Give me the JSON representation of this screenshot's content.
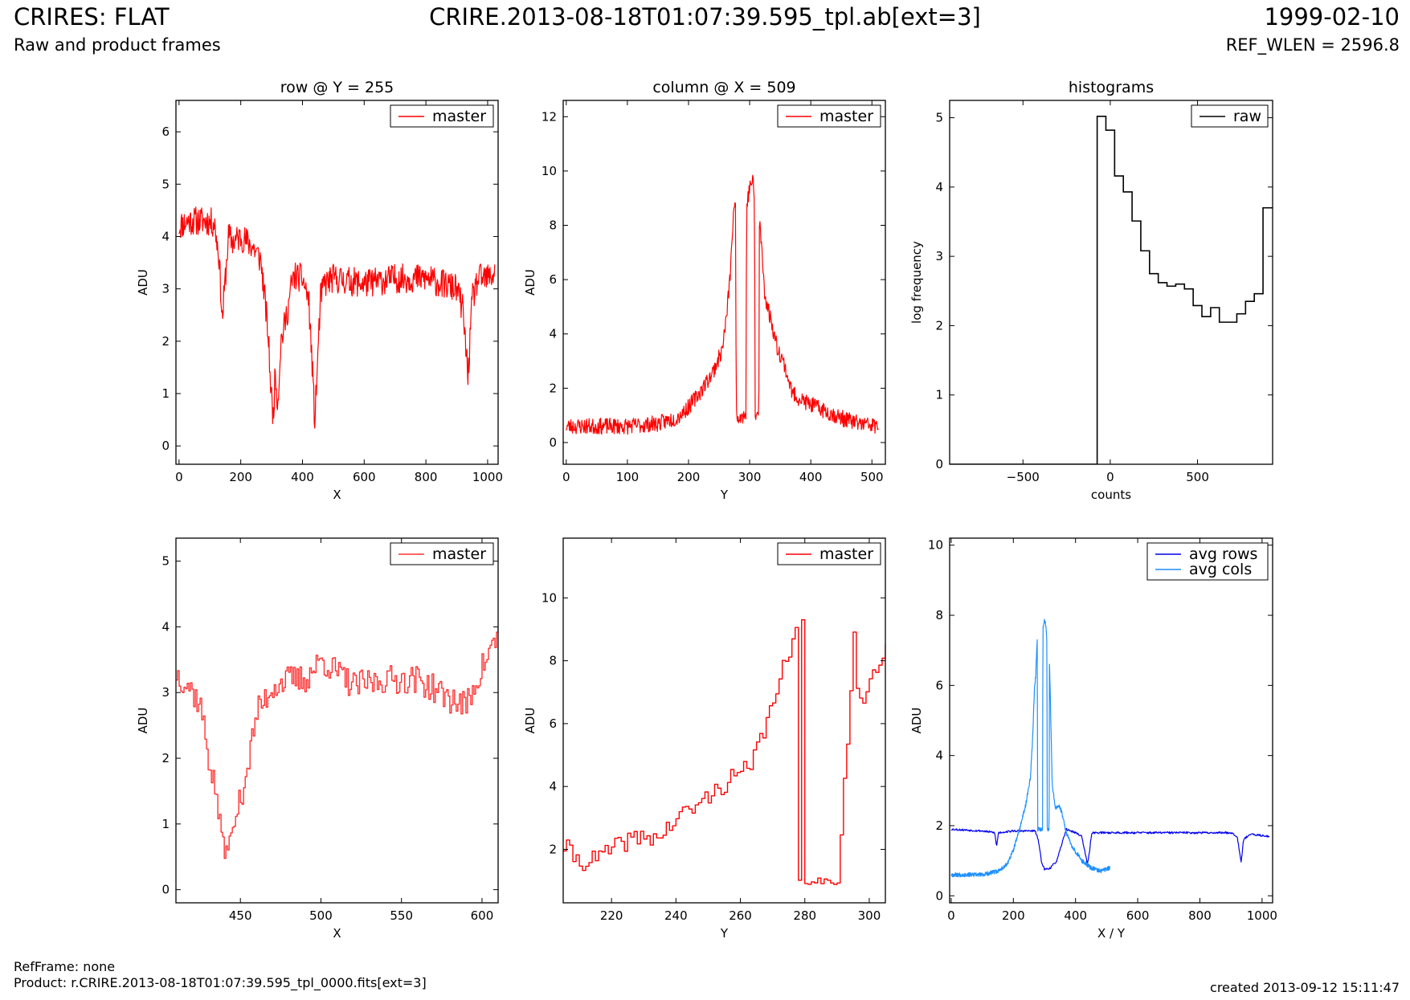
{
  "header": {
    "title_left": "CRIRES: FLAT",
    "subtitle_left": "Raw and product frames",
    "title_center": "CRIRE.2013-08-18T01:07:39.595_tpl.ab[ext=3]",
    "title_right": "1999-02-10",
    "subtitle_right": "REF_WLEN = 2596.8"
  },
  "footer": {
    "ref_frame": "RefFrame: none",
    "product": "Product: r.CRIRE.2013-08-18T01:07:39.595_tpl_0000.fits[ext=3]",
    "created": "created 2013-09-12 15:11:47"
  },
  "colors": {
    "master": "#ff0000",
    "raw": "#000000",
    "avg_rows": "#0000ee",
    "avg_cols": "#1e90ff"
  },
  "chart_data": [
    {
      "type": "line",
      "title": "row @ Y = 255",
      "xlabel": "X",
      "ylabel": "ADU",
      "xlim": [
        -10,
        1034
      ],
      "ylim": [
        -0.35,
        6.6
      ],
      "xticks": [
        0,
        200,
        400,
        600,
        800,
        1000
      ],
      "yticks": [
        0,
        1,
        2,
        3,
        4,
        5,
        6
      ],
      "legend": "top-right",
      "series": [
        {
          "name": "master",
          "color": "#ff0000",
          "style": "noisy",
          "noise": 0.28,
          "noise_seed": 11,
          "x": [
            0,
            30,
            60,
            90,
            115,
            130,
            140,
            150,
            160,
            175,
            200,
            240,
            265,
            280,
            290,
            298,
            305,
            312,
            320,
            330,
            340,
            352,
            365,
            375,
            400,
            420,
            432,
            440,
            448,
            458,
            470,
            500,
            600,
            700,
            800,
            900,
            920,
            930,
            937,
            950,
            970,
            1000,
            1023
          ],
          "y": [
            4.2,
            4.3,
            4.3,
            4.3,
            4.25,
            3.6,
            2.4,
            3.2,
            4.0,
            3.9,
            4.0,
            3.8,
            3.55,
            2.7,
            2.0,
            1.05,
            0.55,
            1.4,
            0.8,
            2.0,
            2.25,
            2.6,
            3.1,
            3.25,
            3.2,
            2.8,
            1.5,
            0.45,
            1.5,
            2.8,
            3.1,
            3.2,
            3.1,
            3.2,
            3.2,
            3.0,
            2.6,
            1.8,
            1.35,
            2.8,
            3.2,
            3.2,
            3.3
          ]
        }
      ]
    },
    {
      "type": "line",
      "title": "column @ X = 509",
      "xlabel": "Y",
      "ylabel": "ADU",
      "xlim": [
        -5,
        522
      ],
      "ylim": [
        -0.8,
        12.6
      ],
      "xticks": [
        0,
        100,
        200,
        300,
        400,
        500
      ],
      "yticks": [
        0,
        2,
        4,
        6,
        8,
        10,
        12
      ],
      "legend": "top-right",
      "series": [
        {
          "name": "master",
          "color": "#ff0000",
          "style": "noisy",
          "noise": 0.3,
          "noise_seed": 23,
          "x": [
            0,
            50,
            100,
            150,
            180,
            200,
            220,
            240,
            255,
            262,
            268,
            272,
            277,
            278,
            294,
            295,
            300,
            305,
            308,
            309,
            315,
            316,
            325,
            335,
            345,
            355,
            370,
            390,
            420,
            450,
            480,
            511
          ],
          "y": [
            0.6,
            0.6,
            0.6,
            0.7,
            0.9,
            1.3,
            1.9,
            2.6,
            3.4,
            4.6,
            6.1,
            7.9,
            9.0,
            1.0,
            1.0,
            8.7,
            9.4,
            9.7,
            8.8,
            1.0,
            1.0,
            8.3,
            5.4,
            4.5,
            3.5,
            3.0,
            1.8,
            1.5,
            1.2,
            0.9,
            0.7,
            0.6
          ]
        }
      ]
    },
    {
      "type": "line",
      "title": "histograms",
      "xlabel": "counts",
      "ylabel": "log frequency",
      "xlim": [
        -920,
        930
      ],
      "ylim": [
        0,
        5.25
      ],
      "xticks": [
        -500,
        0,
        500
      ],
      "yticks": [
        0,
        1,
        2,
        3,
        4,
        5
      ],
      "legend": "top-right",
      "series": [
        {
          "name": "raw",
          "color": "#000000",
          "style": "steps",
          "x": [
            -920,
            -75,
            -75,
            -25,
            25,
            75,
            125,
            175,
            225,
            275,
            325,
            375,
            425,
            475,
            525,
            575,
            625,
            675,
            725,
            775,
            825,
            875,
            930
          ],
          "y": [
            0,
            0,
            5.02,
            4.82,
            4.16,
            3.93,
            3.51,
            3.08,
            2.75,
            2.62,
            2.57,
            2.6,
            2.53,
            2.29,
            2.13,
            2.26,
            2.05,
            2.05,
            2.17,
            2.35,
            2.46,
            3.7,
            3.7
          ]
        }
      ]
    },
    {
      "type": "line",
      "title": "",
      "xlabel": "X",
      "ylabel": "ADU",
      "xlim": [
        410,
        610
      ],
      "ylim": [
        -0.2,
        5.35
      ],
      "xticks": [
        450,
        500,
        550,
        600
      ],
      "yticks": [
        0,
        1,
        2,
        3,
        4,
        5
      ],
      "legend": "top-right",
      "series": [
        {
          "name": "master",
          "color": "#ff3333",
          "style": "stepnoisy",
          "noise": 0.22,
          "noise_seed": 37,
          "x": [
            410,
            418,
            425,
            430,
            435,
            440,
            445,
            450,
            455,
            460,
            470,
            480,
            490,
            500,
            520,
            540,
            560,
            580,
            590,
            600,
            610
          ],
          "y": [
            3.3,
            3.1,
            2.8,
            2.0,
            1.4,
            0.55,
            0.9,
            1.4,
            2.0,
            2.7,
            3.1,
            3.2,
            3.2,
            3.5,
            3.1,
            3.2,
            3.2,
            2.9,
            2.8,
            3.4,
            3.9
          ]
        }
      ]
    },
    {
      "type": "line",
      "title": "",
      "xlabel": "Y",
      "ylabel": "ADU",
      "xlim": [
        205,
        305
      ],
      "ylim": [
        0.3,
        11.9
      ],
      "xticks": [
        220,
        240,
        260,
        280,
        300
      ],
      "yticks": [
        2,
        4,
        6,
        8,
        10
      ],
      "legend": "top-right",
      "series": [
        {
          "name": "master",
          "color": "#ff0000",
          "style": "stepnoisy",
          "noise": 0.3,
          "noise_seed": 41,
          "x": [
            205,
            210,
            215,
            220,
            225,
            230,
            235,
            240,
            245,
            250,
            255,
            260,
            263,
            265,
            268,
            270,
            272,
            274,
            276,
            277,
            278,
            279,
            280,
            290,
            295,
            296,
            298,
            300,
            302,
            305
          ],
          "y": [
            2.1,
            1.6,
            1.7,
            2.0,
            2.3,
            2.4,
            2.4,
            3.0,
            3.3,
            3.7,
            4.1,
            4.5,
            4.5,
            5.3,
            6.0,
            6.8,
            7.6,
            7.9,
            8.4,
            8.9,
            1.0,
            9.4,
            1.0,
            1.0,
            8.7,
            7.0,
            6.8,
            7.2,
            7.8,
            8.3
          ]
        }
      ]
    },
    {
      "type": "line",
      "title": "",
      "xlabel": "X / Y",
      "ylabel": "ADU",
      "xlim": [
        -5,
        1034
      ],
      "ylim": [
        -0.2,
        10.2
      ],
      "xticks": [
        0,
        200,
        400,
        600,
        800,
        1000
      ],
      "yticks": [
        0,
        2,
        4,
        6,
        8,
        10
      ],
      "legend": "top-right",
      "series": [
        {
          "name": "avg rows",
          "color": "#0000ee",
          "style": "noisy",
          "noise": 0.03,
          "noise_seed": 53,
          "x": [
            0,
            100,
            140,
            146,
            152,
            200,
            250,
            270,
            280,
            290,
            300,
            320,
            340,
            370,
            400,
            420,
            438,
            444,
            452,
            480,
            600,
            800,
            900,
            920,
            933,
            940,
            960,
            1023
          ],
          "y": [
            1.9,
            1.85,
            1.8,
            1.4,
            1.8,
            1.85,
            1.85,
            1.85,
            1.6,
            1.0,
            0.75,
            0.8,
            1.0,
            1.9,
            1.8,
            1.7,
            0.9,
            1.2,
            1.8,
            1.8,
            1.8,
            1.8,
            1.8,
            1.7,
            0.95,
            1.6,
            1.75,
            1.7
          ]
        },
        {
          "name": "avg cols",
          "color": "#1e90ff",
          "style": "noisy",
          "noise": 0.06,
          "noise_seed": 67,
          "x": [
            0,
            50,
            100,
            150,
            180,
            200,
            220,
            240,
            255,
            262,
            268,
            272,
            277,
            278,
            294,
            295,
            300,
            305,
            308,
            309,
            315,
            316,
            325,
            335,
            345,
            355,
            370,
            390,
            420,
            450,
            480,
            511
          ],
          "y": [
            0.6,
            0.6,
            0.6,
            0.7,
            0.9,
            1.3,
            1.9,
            2.6,
            3.4,
            4.5,
            5.9,
            6.3,
            7.4,
            1.9,
            1.9,
            7.6,
            7.9,
            7.7,
            7.2,
            1.9,
            1.9,
            6.8,
            3.2,
            2.5,
            2.6,
            2.4,
            1.8,
            1.4,
            1.0,
            0.8,
            0.7,
            0.8
          ]
        }
      ]
    }
  ]
}
